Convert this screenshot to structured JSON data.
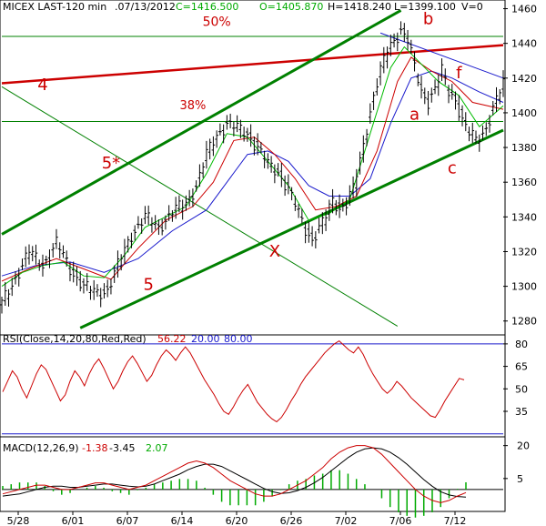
{
  "chart_data": [
    {
      "type": "line",
      "panel": "price",
      "header": {
        "symbol": "MICEX LAST-120 min",
        "date": ".07/13/2012",
        "close": "C=1416.500",
        "open": "O=1405.870",
        "high": "H=1418.240",
        "low": "L=1399.100",
        "volume": "V=0"
      },
      "x_tick_labels": [
        "5/28",
        "6/01",
        "6/07",
        "6/14",
        "6/20",
        "6/26",
        "7/02",
        "7/06",
        "7/12"
      ],
      "y_tick_labels": [
        "1460",
        "1440",
        "1420",
        "1400",
        "1380",
        "1360",
        "1340",
        "1320",
        "1300",
        "1280"
      ],
      "ylim": [
        1272,
        1465
      ],
      "price_path": [
        [
          0,
          1290
        ],
        [
          4,
          1305
        ],
        [
          8,
          1320
        ],
        [
          12,
          1312
        ],
        [
          16,
          1325
        ],
        [
          20,
          1310
        ],
        [
          24,
          1300
        ],
        [
          28,
          1296
        ],
        [
          31,
          1298
        ],
        [
          34,
          1312
        ],
        [
          38,
          1330
        ],
        [
          42,
          1340
        ],
        [
          46,
          1334
        ],
        [
          50,
          1343
        ],
        [
          54,
          1348
        ],
        [
          57,
          1358
        ],
        [
          60,
          1376
        ],
        [
          63,
          1387
        ],
        [
          66,
          1394
        ],
        [
          69,
          1391
        ],
        [
          72,
          1388
        ],
        [
          75,
          1380
        ],
        [
          78,
          1370
        ],
        [
          81,
          1366
        ],
        [
          84,
          1356
        ],
        [
          87,
          1342
        ],
        [
          89,
          1333
        ],
        [
          91,
          1327
        ],
        [
          93,
          1333
        ],
        [
          95,
          1340
        ],
        [
          97,
          1350
        ],
        [
          99,
          1345
        ],
        [
          101,
          1348
        ],
        [
          103,
          1356
        ],
        [
          105,
          1372
        ],
        [
          107,
          1392
        ],
        [
          109,
          1410
        ],
        [
          111,
          1424
        ],
        [
          113,
          1436
        ],
        [
          115,
          1442
        ],
        [
          117,
          1448
        ],
        [
          119,
          1442
        ],
        [
          121,
          1426
        ],
        [
          123,
          1412
        ],
        [
          125,
          1407
        ],
        [
          127,
          1414
        ],
        [
          129,
          1424
        ],
        [
          131,
          1412
        ],
        [
          133,
          1408
        ],
        [
          135,
          1396
        ],
        [
          137,
          1388
        ],
        [
          139,
          1384
        ],
        [
          141,
          1388
        ],
        [
          143,
          1397
        ],
        [
          145,
          1408
        ],
        [
          147,
          1416
        ]
      ],
      "ma_fast_path": [
        [
          0,
          1300
        ],
        [
          6,
          1308
        ],
        [
          12,
          1312
        ],
        [
          18,
          1314
        ],
        [
          24,
          1306
        ],
        [
          30,
          1305
        ],
        [
          36,
          1318
        ],
        [
          42,
          1334
        ],
        [
          48,
          1340
        ],
        [
          54,
          1346
        ],
        [
          60,
          1365
        ],
        [
          66,
          1388
        ],
        [
          72,
          1386
        ],
        [
          78,
          1372
        ],
        [
          84,
          1358
        ],
        [
          90,
          1338
        ],
        [
          96,
          1342
        ],
        [
          102,
          1350
        ],
        [
          108,
          1388
        ],
        [
          114,
          1426
        ],
        [
          118,
          1438
        ],
        [
          122,
          1430
        ],
        [
          128,
          1418
        ],
        [
          134,
          1410
        ],
        [
          140,
          1392
        ],
        [
          147,
          1404
        ]
      ],
      "ma_mid_path": [
        [
          0,
          1303
        ],
        [
          8,
          1310
        ],
        [
          16,
          1316
        ],
        [
          24,
          1310
        ],
        [
          32,
          1304
        ],
        [
          40,
          1322
        ],
        [
          48,
          1338
        ],
        [
          56,
          1346
        ],
        [
          62,
          1360
        ],
        [
          68,
          1384
        ],
        [
          74,
          1386
        ],
        [
          80,
          1376
        ],
        [
          86,
          1362
        ],
        [
          92,
          1344
        ],
        [
          98,
          1346
        ],
        [
          104,
          1352
        ],
        [
          110,
          1378
        ],
        [
          116,
          1418
        ],
        [
          120,
          1432
        ],
        [
          126,
          1424
        ],
        [
          132,
          1418
        ],
        [
          138,
          1406
        ],
        [
          147,
          1402
        ]
      ],
      "ma_slow_path": [
        [
          0,
          1306
        ],
        [
          10,
          1312
        ],
        [
          20,
          1314
        ],
        [
          30,
          1308
        ],
        [
          40,
          1316
        ],
        [
          50,
          1332
        ],
        [
          60,
          1344
        ],
        [
          66,
          1360
        ],
        [
          72,
          1376
        ],
        [
          78,
          1378
        ],
        [
          84,
          1372
        ],
        [
          90,
          1358
        ],
        [
          96,
          1352
        ],
        [
          102,
          1352
        ],
        [
          108,
          1362
        ],
        [
          114,
          1394
        ],
        [
          120,
          1420
        ],
        [
          126,
          1424
        ],
        [
          132,
          1420
        ],
        [
          140,
          1412
        ],
        [
          147,
          1406
        ]
      ],
      "horizontal_levels": [
        1444,
        1395
      ],
      "trend_lines": [
        {
          "color": "#cc0000",
          "from": [
            0,
            1417
          ],
          "to": [
            147,
            1439
          ]
        },
        {
          "color": "#008000",
          "from": [
            0,
            1330
          ],
          "to": [
            117,
            1459
          ]
        },
        {
          "color": "#008000",
          "from": [
            23,
            1276
          ],
          "to": [
            147,
            1390
          ]
        },
        {
          "color": "#008000",
          "from": [
            0,
            1415
          ],
          "to": [
            116,
            1277
          ]
        },
        {
          "color": "#1a1acc",
          "from": [
            111,
            1446
          ],
          "to": [
            147,
            1420
          ]
        }
      ],
      "annotations": {
        "pct_50": "50%",
        "pct_38": "38%",
        "wave_4": "4",
        "wave_5star": "5*",
        "wave_5": "5",
        "wave_x": "X",
        "wave_a": "a",
        "wave_b": "b",
        "wave_c": "c",
        "wave_f": "f"
      }
    },
    {
      "type": "line",
      "panel": "rsi",
      "title_prefix": "RSI(Close,14,20,80,Red,Red)",
      "value": "56.22",
      "lower": "20.00",
      "upper": "80.00",
      "y_tick_labels": [
        "80",
        "65",
        "50",
        "35"
      ],
      "ylim": [
        18,
        86
      ],
      "values": [
        48,
        55,
        62,
        58,
        50,
        44,
        52,
        60,
        66,
        63,
        56,
        49,
        42,
        46,
        55,
        62,
        58,
        52,
        60,
        66,
        70,
        64,
        57,
        50,
        55,
        62,
        68,
        72,
        67,
        61,
        55,
        59,
        66,
        72,
        76,
        73,
        69,
        74,
        78,
        74,
        68,
        62,
        56,
        51,
        46,
        40,
        35,
        33,
        38,
        44,
        49,
        53,
        47,
        41,
        37,
        33,
        30,
        28,
        31,
        36,
        42,
        47,
        53,
        58,
        62,
        66,
        70,
        74,
        77,
        80,
        82,
        79,
        76,
        74,
        78,
        73,
        66,
        60,
        55,
        50,
        47,
        50,
        55,
        52,
        48,
        44,
        41,
        38,
        35,
        32,
        31,
        36,
        42,
        47,
        52,
        57,
        56
      ]
    },
    {
      "type": "line",
      "panel": "macd",
      "title_prefix": "MACD(12,26,9)",
      "macd_value": "-1.38",
      "signal_value": "-3.45",
      "hist_value": "2.07",
      "y_tick_labels": [
        "20",
        "5"
      ],
      "ylim": [
        -10,
        24
      ],
      "macd": [
        -2,
        -1,
        0,
        1,
        2,
        2,
        1,
        0,
        0,
        1,
        2,
        3,
        3,
        2,
        1,
        0,
        1,
        2,
        4,
        6,
        8,
        10,
        12,
        13,
        12,
        10,
        7,
        4,
        2,
        0,
        -2,
        -3,
        -3,
        -2,
        0,
        2,
        4,
        7,
        10,
        14,
        17,
        19,
        20,
        20,
        19,
        16,
        12,
        8,
        4,
        0,
        -3,
        -5,
        -6,
        -5,
        -3,
        -1.4
      ],
      "signal": [
        -3,
        -2.5,
        -2,
        -1,
        0,
        1,
        1.5,
        1.5,
        1,
        1,
        1.5,
        2,
        2.5,
        2.5,
        2,
        1.5,
        1.2,
        1.5,
        2.5,
        4,
        5.5,
        7,
        9,
        10.5,
        11.5,
        11.5,
        10.5,
        8.5,
        6.5,
        4.5,
        2.5,
        0.5,
        -1,
        -1.8,
        -1.5,
        -0.5,
        1,
        3,
        5.5,
        8.5,
        11.5,
        14.5,
        17,
        18.5,
        19,
        18.5,
        17,
        14.5,
        11.5,
        8,
        4.5,
        1.5,
        -1,
        -2.5,
        -3.2,
        -3.45
      ]
    }
  ]
}
